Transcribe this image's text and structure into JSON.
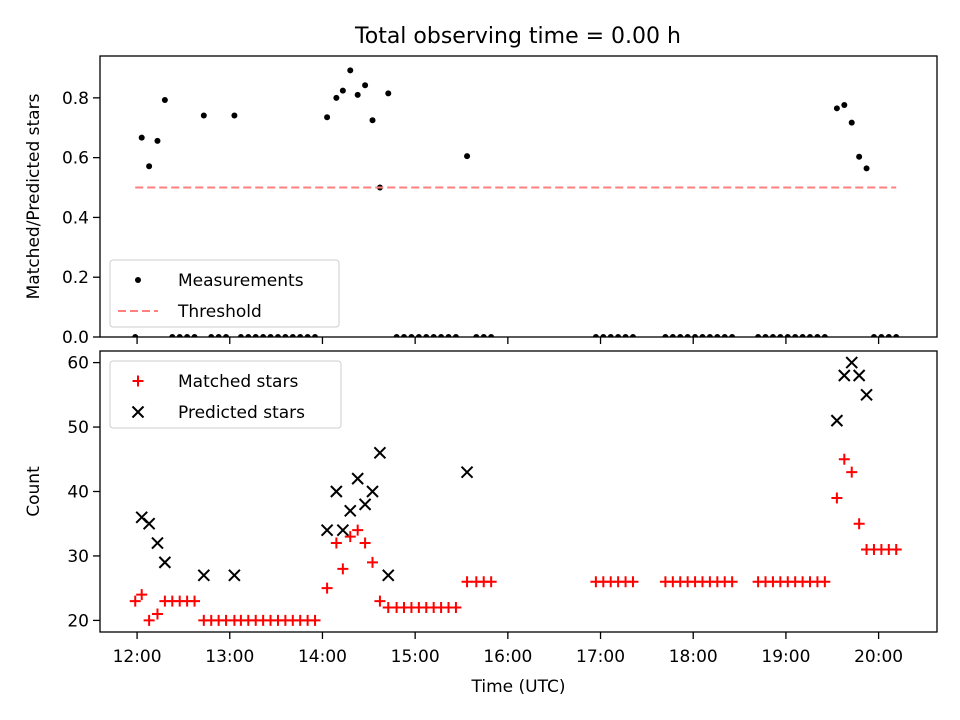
{
  "title": "Total observing time = 0.00 h",
  "chart_data": [
    {
      "type": "scatter",
      "ylabel": "Matched/Predicted stars",
      "ylim": [
        0,
        0.94
      ],
      "xlim": [
        11.6,
        20.63
      ],
      "yticks": [
        0.0,
        0.2,
        0.4,
        0.6,
        0.8
      ],
      "ytick_labels": [
        "0.0",
        "0.2",
        "0.4",
        "0.6",
        "0.8"
      ],
      "grid": false,
      "legend": {
        "position": "lower-left",
        "entries": [
          "Measurements",
          "Threshold"
        ]
      },
      "series": [
        {
          "name": "Measurements",
          "marker": "dot",
          "color": "#000000",
          "points": [
            [
              11.98,
              0.0
            ],
            [
              12.05,
              0.667
            ],
            [
              12.13,
              0.571
            ],
            [
              12.22,
              0.656
            ],
            [
              12.3,
              0.793
            ],
            [
              12.38,
              0.0
            ],
            [
              12.46,
              0.0
            ],
            [
              12.54,
              0.0
            ],
            [
              12.62,
              0.0
            ],
            [
              12.72,
              0.741
            ],
            [
              12.8,
              0.0
            ],
            [
              12.88,
              0.0
            ],
            [
              12.96,
              0.0
            ],
            [
              13.05,
              0.741
            ],
            [
              13.12,
              0.0
            ],
            [
              13.2,
              0.0
            ],
            [
              13.28,
              0.0
            ],
            [
              13.36,
              0.0
            ],
            [
              13.44,
              0.0
            ],
            [
              13.52,
              0.0
            ],
            [
              13.6,
              0.0
            ],
            [
              13.68,
              0.0
            ],
            [
              13.76,
              0.0
            ],
            [
              13.84,
              0.0
            ],
            [
              13.92,
              0.0
            ],
            [
              14.05,
              0.735
            ],
            [
              14.15,
              0.8
            ],
            [
              14.22,
              0.824
            ],
            [
              14.3,
              0.892
            ],
            [
              14.38,
              0.81
            ],
            [
              14.46,
              0.842
            ],
            [
              14.54,
              0.725
            ],
            [
              14.62,
              0.5
            ],
            [
              14.71,
              0.815
            ],
            [
              14.8,
              0.0
            ],
            [
              14.88,
              0.0
            ],
            [
              14.96,
              0.0
            ],
            [
              15.04,
              0.0
            ],
            [
              15.12,
              0.0
            ],
            [
              15.2,
              0.0
            ],
            [
              15.28,
              0.0
            ],
            [
              15.36,
              0.0
            ],
            [
              15.44,
              0.0
            ],
            [
              15.56,
              0.605
            ],
            [
              15.66,
              0.0
            ],
            [
              15.74,
              0.0
            ],
            [
              15.82,
              0.0
            ],
            [
              16.95,
              0.0
            ],
            [
              17.03,
              0.0
            ],
            [
              17.11,
              0.0
            ],
            [
              17.19,
              0.0
            ],
            [
              17.27,
              0.0
            ],
            [
              17.35,
              0.0
            ],
            [
              17.7,
              0.0
            ],
            [
              17.78,
              0.0
            ],
            [
              17.86,
              0.0
            ],
            [
              17.94,
              0.0
            ],
            [
              18.02,
              0.0
            ],
            [
              18.1,
              0.0
            ],
            [
              18.18,
              0.0
            ],
            [
              18.26,
              0.0
            ],
            [
              18.34,
              0.0
            ],
            [
              18.42,
              0.0
            ],
            [
              18.7,
              0.0
            ],
            [
              18.78,
              0.0
            ],
            [
              18.86,
              0.0
            ],
            [
              18.94,
              0.0
            ],
            [
              19.02,
              0.0
            ],
            [
              19.1,
              0.0
            ],
            [
              19.18,
              0.0
            ],
            [
              19.26,
              0.0
            ],
            [
              19.34,
              0.0
            ],
            [
              19.42,
              0.0
            ],
            [
              19.55,
              0.765
            ],
            [
              19.63,
              0.776
            ],
            [
              19.71,
              0.717
            ],
            [
              19.79,
              0.603
            ],
            [
              19.87,
              0.564
            ],
            [
              19.95,
              0.0
            ],
            [
              20.03,
              0.0
            ],
            [
              20.11,
              0.0
            ],
            [
              20.19,
              0.0
            ]
          ]
        },
        {
          "name": "Threshold",
          "type": "line",
          "style": "dashed",
          "color": "#ff7f7f",
          "x": [
            11.98,
            20.19
          ],
          "y": [
            0.5,
            0.5
          ]
        }
      ]
    },
    {
      "type": "scatter",
      "xlabel": "Time (UTC)",
      "ylabel": "Count",
      "ylim": [
        18.2,
        61.8
      ],
      "xlim": [
        11.6,
        20.63
      ],
      "yticks": [
        20,
        30,
        40,
        50,
        60
      ],
      "ytick_labels": [
        "20",
        "30",
        "40",
        "50",
        "60"
      ],
      "xticks": [
        12,
        13,
        14,
        15,
        16,
        17,
        18,
        19,
        20
      ],
      "xtick_labels": [
        "12:00",
        "13:00",
        "14:00",
        "15:00",
        "16:00",
        "17:00",
        "18:00",
        "19:00",
        "20:00"
      ],
      "grid": false,
      "legend": {
        "position": "upper-left",
        "entries": [
          "Matched stars",
          "Predicted stars"
        ]
      },
      "series": [
        {
          "name": "Matched stars",
          "marker": "plus",
          "color": "#ff0000",
          "points": [
            [
              11.98,
              23
            ],
            [
              12.05,
              24
            ],
            [
              12.13,
              20
            ],
            [
              12.22,
              21
            ],
            [
              12.3,
              23
            ],
            [
              12.38,
              23
            ],
            [
              12.46,
              23
            ],
            [
              12.54,
              23
            ],
            [
              12.62,
              23
            ],
            [
              12.72,
              20
            ],
            [
              12.8,
              20
            ],
            [
              12.88,
              20
            ],
            [
              12.96,
              20
            ],
            [
              13.05,
              20
            ],
            [
              13.12,
              20
            ],
            [
              13.2,
              20
            ],
            [
              13.28,
              20
            ],
            [
              13.36,
              20
            ],
            [
              13.44,
              20
            ],
            [
              13.52,
              20
            ],
            [
              13.6,
              20
            ],
            [
              13.68,
              20
            ],
            [
              13.76,
              20
            ],
            [
              13.84,
              20
            ],
            [
              13.92,
              20
            ],
            [
              14.05,
              25
            ],
            [
              14.15,
              32
            ],
            [
              14.22,
              28
            ],
            [
              14.3,
              33
            ],
            [
              14.38,
              34
            ],
            [
              14.46,
              32
            ],
            [
              14.54,
              29
            ],
            [
              14.62,
              23
            ],
            [
              14.71,
              22
            ],
            [
              14.8,
              22
            ],
            [
              14.88,
              22
            ],
            [
              14.96,
              22
            ],
            [
              15.04,
              22
            ],
            [
              15.12,
              22
            ],
            [
              15.2,
              22
            ],
            [
              15.28,
              22
            ],
            [
              15.36,
              22
            ],
            [
              15.44,
              22
            ],
            [
              15.56,
              26
            ],
            [
              15.66,
              26
            ],
            [
              15.74,
              26
            ],
            [
              15.82,
              26
            ],
            [
              16.95,
              26
            ],
            [
              17.03,
              26
            ],
            [
              17.11,
              26
            ],
            [
              17.19,
              26
            ],
            [
              17.27,
              26
            ],
            [
              17.35,
              26
            ],
            [
              17.7,
              26
            ],
            [
              17.78,
              26
            ],
            [
              17.86,
              26
            ],
            [
              17.94,
              26
            ],
            [
              18.02,
              26
            ],
            [
              18.1,
              26
            ],
            [
              18.18,
              26
            ],
            [
              18.26,
              26
            ],
            [
              18.34,
              26
            ],
            [
              18.42,
              26
            ],
            [
              18.7,
              26
            ],
            [
              18.78,
              26
            ],
            [
              18.86,
              26
            ],
            [
              18.94,
              26
            ],
            [
              19.02,
              26
            ],
            [
              19.1,
              26
            ],
            [
              19.18,
              26
            ],
            [
              19.26,
              26
            ],
            [
              19.34,
              26
            ],
            [
              19.42,
              26
            ],
            [
              19.55,
              39
            ],
            [
              19.63,
              45
            ],
            [
              19.71,
              43
            ],
            [
              19.79,
              35
            ],
            [
              19.87,
              31
            ],
            [
              19.95,
              31
            ],
            [
              20.03,
              31
            ],
            [
              20.11,
              31
            ],
            [
              20.19,
              31
            ]
          ]
        },
        {
          "name": "Predicted stars",
          "marker": "x",
          "color": "#000000",
          "points": [
            [
              12.05,
              36
            ],
            [
              12.13,
              35
            ],
            [
              12.22,
              32
            ],
            [
              12.3,
              29
            ],
            [
              12.72,
              27
            ],
            [
              13.05,
              27
            ],
            [
              14.05,
              34
            ],
            [
              14.15,
              40
            ],
            [
              14.22,
              34
            ],
            [
              14.3,
              37
            ],
            [
              14.38,
              42
            ],
            [
              14.46,
              38
            ],
            [
              14.54,
              40
            ],
            [
              14.62,
              46
            ],
            [
              14.71,
              27
            ],
            [
              15.56,
              43
            ],
            [
              19.55,
              51
            ],
            [
              19.63,
              58
            ],
            [
              19.71,
              60
            ],
            [
              19.79,
              58
            ],
            [
              19.87,
              55
            ]
          ]
        }
      ]
    }
  ]
}
